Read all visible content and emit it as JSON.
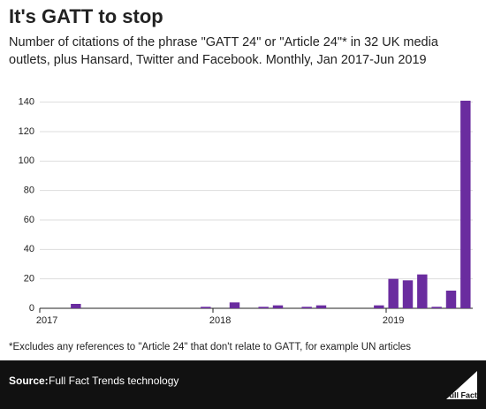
{
  "chart_data": {
    "type": "bar",
    "title": "It's GATT to stop",
    "subtitle": "Number of citations of the phrase \"GATT 24\" or \"Article 24\"* in 32 UK media outlets, plus Hansard, Twitter and Facebook. Monthly, Jan 2017-Jun 2019",
    "categories": [
      "2017",
      null,
      null,
      null,
      null,
      null,
      null,
      null,
      null,
      null,
      null,
      null,
      "2018",
      null,
      null,
      null,
      null,
      null,
      null,
      null,
      null,
      null,
      null,
      null,
      "2019",
      null,
      null,
      null,
      null,
      null
    ],
    "values": [
      0,
      0,
      3,
      0,
      0,
      0,
      0,
      0,
      0,
      0,
      0,
      1,
      0,
      4,
      0,
      1,
      2,
      0,
      1,
      2,
      0,
      0,
      0,
      2,
      20,
      19,
      23,
      1,
      12,
      141
    ],
    "color": "#6a2c9f",
    "ylim": [
      0,
      150
    ],
    "yticks": [
      0,
      20,
      40,
      60,
      80,
      100,
      120,
      140
    ],
    "grid": true,
    "footnote": "*Excludes any references to \"Article 24\" that don't relate to GATT, for example UN articles"
  },
  "footer": {
    "source_label": "Source:",
    "source": "Full Fact Trends technology",
    "logo": "Full Fact"
  }
}
